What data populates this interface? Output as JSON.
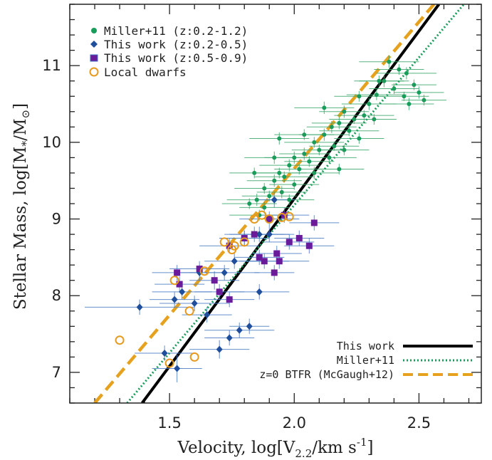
{
  "chart_data": {
    "type": "scatter",
    "xlabel": "Velocity, log[V",
    "xlabel_sub": "2.2",
    "xlabel_tail": "/km s",
    "xlabel_sup": "-1",
    "xlabel_close": "]",
    "ylabel": "Stellar Mass, log[M",
    "ylabel_sub": "*",
    "ylabel_tail": "/M",
    "ylabel_sun": "⊙",
    "ylabel_close": "]",
    "xlim": [
      1.1,
      2.75
    ],
    "ylim": [
      6.6,
      11.8
    ],
    "x_ticks": [
      1.5,
      2.0,
      2.5
    ],
    "x_tick_labels": [
      "1.5",
      "2.0",
      "2.5"
    ],
    "y_ticks": [
      7,
      8,
      9,
      10,
      11
    ],
    "y_tick_labels": [
      "7",
      "8",
      "9",
      "10",
      "11"
    ],
    "legend_top": {
      "position": "top-left",
      "entries": [
        {
          "label": "Miller+11 (z:0.2-1.2)",
          "marker": "circle-filled",
          "color": "#1a9c5b"
        },
        {
          "label": "This work (z:0.2-0.5)",
          "marker": "diamond-filled",
          "color": "#1f4e9c"
        },
        {
          "label": "This work (z:0.5-0.9)",
          "marker": "square-filled",
          "color": "#6a1b9a"
        },
        {
          "label": "Local dwarfs",
          "marker": "circle-open",
          "color": "#e69a1e"
        }
      ]
    },
    "legend_bottom": {
      "position": "bottom-right",
      "entries": [
        {
          "label": "This work",
          "style": "solid",
          "color": "#000000"
        },
        {
          "label": "Miller+11",
          "style": "dotted",
          "color": "#1a9c5b"
        },
        {
          "label": "z=0 BTFR (McGaugh+12)",
          "style": "dashed",
          "color": "#e6a21e"
        }
      ]
    },
    "fit_lines": [
      {
        "name": "This work",
        "style": "solid",
        "color": "#000000",
        "points": [
          [
            1.39,
            6.6
          ],
          [
            2.58,
            11.8
          ]
        ]
      },
      {
        "name": "Miller+11",
        "style": "dotted",
        "color": "#1a9c5b",
        "points": [
          [
            1.33,
            6.6
          ],
          [
            2.68,
            11.8
          ]
        ]
      },
      {
        "name": "z=0 BTFR (McGaugh+12)",
        "style": "dashed",
        "color": "#e6a21e",
        "points": [
          [
            1.2,
            6.6
          ],
          [
            2.56,
            11.8
          ]
        ]
      }
    ],
    "series": [
      {
        "name": "Miller+11 (z:0.2-1.2)",
        "color": "#1a9c5b",
        "marker": "circle-filled",
        "points": [
          [
            2.38,
            11.05,
            0.12,
            0.08
          ],
          [
            2.42,
            10.95,
            0.1,
            0.07
          ],
          [
            2.45,
            10.9,
            0.12,
            0.08
          ],
          [
            2.36,
            10.8,
            0.1,
            0.08
          ],
          [
            2.48,
            10.75,
            0.09,
            0.07
          ],
          [
            2.4,
            10.7,
            0.1,
            0.07
          ],
          [
            2.5,
            10.65,
            0.1,
            0.08
          ],
          [
            2.44,
            10.6,
            0.1,
            0.06
          ],
          [
            2.33,
            10.62,
            0.12,
            0.07
          ],
          [
            2.52,
            10.55,
            0.09,
            0.07
          ],
          [
            2.3,
            10.5,
            0.11,
            0.08
          ],
          [
            2.26,
            10.6,
            0.1,
            0.07
          ],
          [
            2.2,
            10.4,
            0.1,
            0.08
          ],
          [
            2.28,
            10.35,
            0.12,
            0.07
          ],
          [
            2.24,
            10.3,
            0.1,
            0.06
          ],
          [
            2.18,
            10.25,
            0.11,
            0.08
          ],
          [
            2.32,
            10.3,
            0.09,
            0.07
          ],
          [
            2.15,
            10.2,
            0.1,
            0.08
          ],
          [
            2.22,
            10.15,
            0.12,
            0.07
          ],
          [
            2.12,
            10.1,
            0.1,
            0.08
          ],
          [
            2.26,
            10.05,
            0.1,
            0.07
          ],
          [
            2.08,
            10.0,
            0.12,
            0.07
          ],
          [
            2.16,
            9.95,
            0.1,
            0.06
          ],
          [
            2.1,
            9.9,
            0.11,
            0.07
          ],
          [
            2.04,
            9.85,
            0.1,
            0.08
          ],
          [
            2.2,
            9.9,
            0.1,
            0.07
          ],
          [
            2.0,
            9.8,
            0.12,
            0.08
          ],
          [
            2.06,
            9.75,
            0.1,
            0.07
          ],
          [
            2.14,
            9.8,
            0.11,
            0.07
          ],
          [
            1.98,
            9.7,
            0.12,
            0.08
          ],
          [
            2.02,
            9.65,
            0.1,
            0.07
          ],
          [
            1.94,
            9.6,
            0.11,
            0.07
          ],
          [
            2.08,
            9.6,
            0.1,
            0.08
          ],
          [
            1.96,
            9.55,
            0.12,
            0.07
          ],
          [
            1.92,
            9.5,
            0.11,
            0.08
          ],
          [
            2.0,
            9.45,
            0.1,
            0.07
          ],
          [
            1.88,
            9.4,
            0.12,
            0.07
          ],
          [
            1.95,
            9.35,
            0.1,
            0.08
          ],
          [
            1.9,
            9.3,
            0.11,
            0.07
          ],
          [
            1.85,
            9.25,
            0.12,
            0.08
          ],
          [
            1.98,
            9.25,
            0.1,
            0.07
          ],
          [
            1.82,
            9.2,
            0.11,
            0.07
          ],
          [
            1.88,
            9.15,
            0.1,
            0.08
          ],
          [
            1.86,
            9.05,
            0.12,
            0.07
          ],
          [
            2.12,
            10.45,
            0.12,
            0.08
          ],
          [
            2.34,
            10.8,
            0.1,
            0.07
          ],
          [
            2.46,
            10.5,
            0.1,
            0.08
          ],
          [
            2.04,
            10.1,
            0.12,
            0.07
          ],
          [
            1.92,
            9.8,
            0.12,
            0.08
          ],
          [
            2.18,
            9.65,
            0.1,
            0.07
          ],
          [
            1.84,
            9.6,
            0.1,
            0.07
          ],
          [
            1.94,
            10.05,
            0.12,
            0.08
          ]
        ]
      },
      {
        "name": "This work (z:0.2-0.5)",
        "color": "#1f4e9c",
        "marker": "diamond-filled",
        "points": [
          [
            1.38,
            7.85,
            0.22,
            0.1
          ],
          [
            1.48,
            7.25,
            0.12,
            0.1
          ],
          [
            1.53,
            7.05,
            0.1,
            0.18
          ],
          [
            1.55,
            8.05,
            0.12,
            0.1
          ],
          [
            1.6,
            7.9,
            0.14,
            0.1
          ],
          [
            1.65,
            7.75,
            0.1,
            0.1
          ],
          [
            1.7,
            7.3,
            0.12,
            0.12
          ],
          [
            1.74,
            7.45,
            0.1,
            0.1
          ],
          [
            1.78,
            7.55,
            0.14,
            0.1
          ],
          [
            1.82,
            7.6,
            0.08,
            0.1
          ],
          [
            1.86,
            8.05,
            0.12,
            0.1
          ],
          [
            1.72,
            8.3,
            0.14,
            0.1
          ],
          [
            1.76,
            8.45,
            0.12,
            0.1
          ],
          [
            1.8,
            8.75,
            0.1,
            0.1
          ],
          [
            1.86,
            8.8,
            0.12,
            0.1
          ],
          [
            1.9,
            8.8,
            0.1,
            0.1
          ],
          [
            1.92,
            9.25,
            0.08,
            0.1
          ],
          [
            1.52,
            7.95,
            0.1,
            0.1
          ],
          [
            1.62,
            8.3,
            0.1,
            0.1
          ]
        ]
      },
      {
        "name": "This work (z:0.5-0.9)",
        "color": "#6a1b9a",
        "marker": "square-filled",
        "points": [
          [
            1.53,
            8.3,
            0.1,
            0.1
          ],
          [
            1.54,
            8.15,
            0.1,
            0.1
          ],
          [
            1.62,
            8.35,
            0.12,
            0.1
          ],
          [
            1.68,
            8.2,
            0.1,
            0.12
          ],
          [
            1.7,
            8.05,
            0.1,
            0.1
          ],
          [
            1.74,
            7.95,
            0.1,
            0.1
          ],
          [
            1.74,
            8.65,
            0.12,
            0.1
          ],
          [
            1.8,
            8.75,
            0.1,
            0.1
          ],
          [
            1.84,
            8.8,
            0.12,
            0.1
          ],
          [
            1.86,
            8.5,
            0.1,
            0.1
          ],
          [
            1.88,
            8.45,
            0.1,
            0.1
          ],
          [
            1.92,
            8.3,
            0.08,
            0.1
          ],
          [
            1.94,
            8.45,
            0.12,
            0.1
          ],
          [
            1.98,
            8.7,
            0.1,
            0.1
          ],
          [
            2.02,
            8.75,
            0.1,
            0.1
          ],
          [
            2.06,
            8.65,
            0.1,
            0.1
          ],
          [
            2.08,
            8.95,
            0.1,
            0.1
          ],
          [
            1.9,
            9.0,
            0.12,
            0.1
          ],
          [
            1.96,
            9.05,
            0.1,
            0.1
          ],
          [
            1.93,
            8.55,
            0.1,
            0.1
          ]
        ]
      },
      {
        "name": "Local dwarfs",
        "color": "#e69a1e",
        "marker": "circle-open",
        "points": [
          [
            1.3,
            7.42
          ],
          [
            1.5,
            7.12
          ],
          [
            1.52,
            8.2
          ],
          [
            1.6,
            7.2
          ],
          [
            1.58,
            7.8
          ],
          [
            1.64,
            8.32
          ],
          [
            1.72,
            8.7
          ],
          [
            1.76,
            8.65
          ],
          [
            1.8,
            8.7
          ],
          [
            1.84,
            9.0
          ],
          [
            1.87,
            9.05
          ],
          [
            1.9,
            9.0
          ],
          [
            1.95,
            9.02
          ],
          [
            1.98,
            9.03
          ],
          [
            1.75,
            8.6
          ]
        ]
      }
    ]
  }
}
